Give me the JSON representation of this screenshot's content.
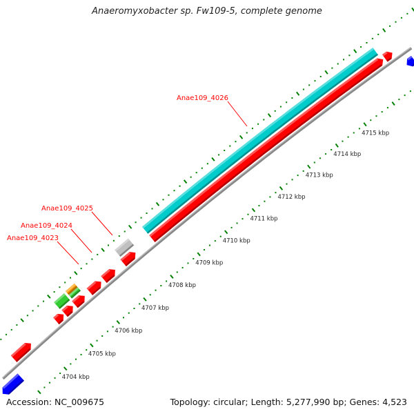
{
  "title": "Anaeromyxobacter sp. Fw109-5, complete genome",
  "footer": {
    "accession": "Accession: NC_009675",
    "summary": "Topology: circular; Length: 5,277,990 bp; Genes: 4,523"
  },
  "scale": {
    "unit": "kbp",
    "major_ticks": [
      4704,
      4705,
      4706,
      4707,
      4708,
      4709,
      4710,
      4711,
      4712,
      4713,
      4714,
      4715
    ],
    "labels": [
      "4704 kbp",
      "4705 kbp",
      "4706 kbp",
      "4707 kbp",
      "4708 kbp",
      "4709 kbp",
      "4710 kbp",
      "4711 kbp",
      "4712 kbp",
      "4713 kbp",
      "4714 kbp",
      "4715 kbp"
    ],
    "minor_step_kbp": 0.2,
    "tick_color": "#008000"
  },
  "gene_labels": [
    {
      "text": "Anae109_4026"
    },
    {
      "text": "Anae109_4025"
    },
    {
      "text": "Anae109_4024"
    },
    {
      "text": "Anae109_4023"
    }
  ],
  "features": [
    {
      "name": "cds-reverse",
      "start": 4702.2,
      "end": 4702.9,
      "lane": "reverse",
      "shape": "arrow",
      "color": "#0000ff"
    },
    {
      "name": "cds-forward",
      "start": 4703.1,
      "end": 4703.75,
      "lane": "forward",
      "shape": "arrow",
      "color": "#ff0000"
    },
    {
      "name": "cds-forward",
      "start": 4704.7,
      "end": 4704.98,
      "lane": "forward",
      "shape": "arrow",
      "color": "#ff0000"
    },
    {
      "name": "cds-forward",
      "start": 4705.02,
      "end": 4705.33,
      "lane": "forward",
      "shape": "arrow",
      "color": "#ff0000"
    },
    {
      "name": "cds-forward",
      "start": 4705.4,
      "end": 4705.77,
      "lane": "forward",
      "shape": "arrow",
      "color": "#ff0000"
    },
    {
      "name": "gene-green",
      "start": 4705.0,
      "end": 4705.38,
      "lane": "feature",
      "shape": "box",
      "color": "#33cc33"
    },
    {
      "name": "gene-green-small",
      "start": 4705.45,
      "end": 4705.78,
      "lane": "feature-low",
      "shape": "box",
      "color": "#33cc33"
    },
    {
      "name": "gene-orange",
      "start": 4705.45,
      "end": 4705.78,
      "lane": "feature-high",
      "shape": "box",
      "color": "#ff9900"
    },
    {
      "name": "cds-forward",
      "start": 4705.95,
      "end": 4706.38,
      "lane": "forward",
      "shape": "arrow",
      "color": "#ff0000"
    },
    {
      "name": "cds-forward",
      "start": 4706.48,
      "end": 4706.9,
      "lane": "forward",
      "shape": "arrow",
      "color": "#ff0000"
    },
    {
      "name": "cds-forward-anae109-4023",
      "start": 4707.2,
      "end": 4707.65,
      "lane": "forward",
      "shape": "arrow",
      "color": "#ff0000"
    },
    {
      "name": "gene-gray-anae109-4025",
      "start": 4707.25,
      "end": 4707.75,
      "lane": "feature",
      "shape": "box",
      "color": "#c0c0c0"
    },
    {
      "name": "gene-cyan-anae109-4026",
      "start": 4708.26,
      "end": 4716.46,
      "lane": "feature",
      "shape": "box",
      "color": "#00cccc"
    },
    {
      "name": "cds-forward-anae109-4026",
      "start": 4708.26,
      "end": 4716.5,
      "lane": "forward",
      "shape": "arrow",
      "color": "#ff0000"
    },
    {
      "name": "cds-forward",
      "start": 4716.56,
      "end": 4716.82,
      "lane": "forward",
      "shape": "arrow",
      "color": "#ff0000"
    },
    {
      "name": "cds-reverse",
      "start": 4716.95,
      "end": 4717.8,
      "lane": "reverse",
      "shape": "arrow",
      "color": "#0000ff"
    }
  ]
}
